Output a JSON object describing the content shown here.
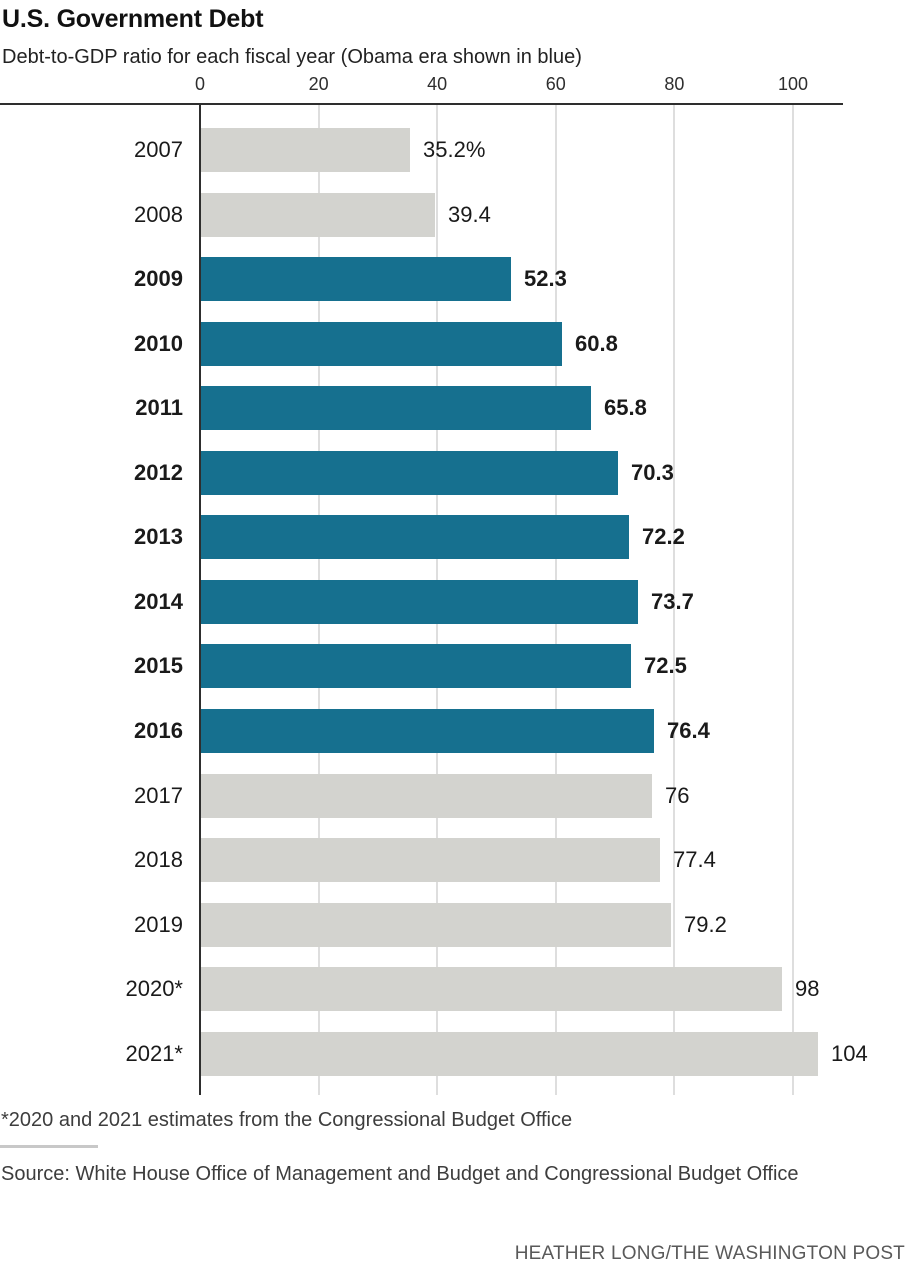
{
  "header": {
    "title": "U.S. Government Debt",
    "subtitle": "Debt-to-GDP ratio for each fiscal year (Obama era shown in blue)"
  },
  "chart_data": {
    "type": "bar",
    "orientation": "horizontal",
    "title": "U.S. Government Debt",
    "subtitle": "Debt-to-GDP ratio for each fiscal year (Obama era shown in blue)",
    "categories": [
      "2007",
      "2008",
      "2009",
      "2010",
      "2011",
      "2012",
      "2013",
      "2014",
      "2015",
      "2016",
      "2017",
      "2018",
      "2019",
      "2020*",
      "2021*"
    ],
    "values": [
      35.2,
      39.4,
      52.3,
      60.8,
      65.8,
      70.3,
      72.2,
      73.7,
      72.5,
      76.4,
      76,
      77.4,
      79.2,
      98,
      104
    ],
    "value_labels": [
      "35.2%",
      "39.4",
      "52.3",
      "60.8",
      "65.8",
      "70.3",
      "72.2",
      "73.7",
      "72.5",
      "76.4",
      "76",
      "77.4",
      "79.2",
      "98",
      "104"
    ],
    "obama_era_highlight": [
      false,
      false,
      true,
      true,
      true,
      true,
      true,
      true,
      true,
      true,
      false,
      false,
      false,
      false,
      false
    ],
    "x_ticks": [
      0,
      20,
      40,
      60,
      80,
      100
    ],
    "xlim": [
      0,
      108.5
    ],
    "grid": "vertical",
    "legend": "none",
    "colors": {
      "bar_default": "#d3d3cf",
      "bar_highlight": "#16708f",
      "axis_line": "#2e2e2e",
      "gridline": "#dedede"
    }
  },
  "footer": {
    "footnote": "*2020 and 2021 estimates from the Congressional Budget Office",
    "source": "Source: White House Office of Management and Budget and Congressional Budget Office",
    "credit": "HEATHER LONG/THE WASHINGTON POST"
  }
}
